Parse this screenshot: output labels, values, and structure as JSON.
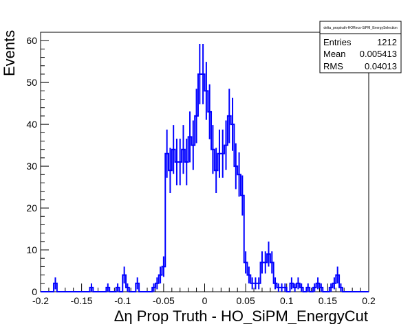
{
  "chart_data": {
    "type": "histogram",
    "xlabel": "Δη Prop Truth - HO_SiPM_EnergyCut",
    "ylabel": "Events",
    "xlim": [
      -0.2,
      0.2
    ],
    "ylim": [
      0,
      62
    ],
    "x_ticks": [
      -0.2,
      -0.15,
      -0.1,
      -0.05,
      0,
      0.05,
      0.1,
      0.15,
      0.2
    ],
    "x_tick_labels": [
      "-0.2",
      "-0.15",
      "-0.1",
      "-0.05",
      "0",
      "0.05",
      "0.1",
      "0.15",
      "0.2"
    ],
    "y_ticks": [
      0,
      10,
      20,
      30,
      40,
      50,
      60
    ],
    "y_tick_labels": [
      "0",
      "10",
      "20",
      "30",
      "40",
      "50",
      "60"
    ],
    "bin_width": 0.004,
    "line_color": "#0000ff",
    "bins": [
      {
        "x": -0.182,
        "y": 2
      },
      {
        "x": -0.138,
        "y": 1
      },
      {
        "x": -0.118,
        "y": 1
      },
      {
        "x": -0.106,
        "y": 1
      },
      {
        "x": -0.098,
        "y": 4
      },
      {
        "x": -0.094,
        "y": 1
      },
      {
        "x": -0.082,
        "y": 2
      },
      {
        "x": -0.062,
        "y": 1
      },
      {
        "x": -0.058,
        "y": 2
      },
      {
        "x": -0.054,
        "y": 4
      },
      {
        "x": -0.05,
        "y": 6
      },
      {
        "x": -0.046,
        "y": 33
      },
      {
        "x": -0.042,
        "y": 29
      },
      {
        "x": -0.038,
        "y": 34
      },
      {
        "x": -0.034,
        "y": 31
      },
      {
        "x": -0.03,
        "y": 31
      },
      {
        "x": -0.026,
        "y": 34
      },
      {
        "x": -0.022,
        "y": 31
      },
      {
        "x": -0.018,
        "y": 37
      },
      {
        "x": -0.014,
        "y": 35
      },
      {
        "x": -0.01,
        "y": 42
      },
      {
        "x": -0.006,
        "y": 52
      },
      {
        "x": -0.002,
        "y": 52
      },
      {
        "x": 0.002,
        "y": 48
      },
      {
        "x": 0.006,
        "y": 43
      },
      {
        "x": 0.01,
        "y": 34
      },
      {
        "x": 0.014,
        "y": 29
      },
      {
        "x": 0.018,
        "y": 33
      },
      {
        "x": 0.022,
        "y": 33
      },
      {
        "x": 0.026,
        "y": 35
      },
      {
        "x": 0.03,
        "y": 42
      },
      {
        "x": 0.034,
        "y": 40
      },
      {
        "x": 0.038,
        "y": 30
      },
      {
        "x": 0.042,
        "y": 28
      },
      {
        "x": 0.046,
        "y": 23
      },
      {
        "x": 0.05,
        "y": 7
      },
      {
        "x": 0.054,
        "y": 4
      },
      {
        "x": 0.058,
        "y": 2
      },
      {
        "x": 0.062,
        "y": 2
      },
      {
        "x": 0.066,
        "y": 2
      },
      {
        "x": 0.07,
        "y": 7
      },
      {
        "x": 0.074,
        "y": 7
      },
      {
        "x": 0.078,
        "y": 9
      },
      {
        "x": 0.082,
        "y": 7
      },
      {
        "x": 0.086,
        "y": 2
      },
      {
        "x": 0.09,
        "y": 1
      },
      {
        "x": 0.094,
        "y": 1
      },
      {
        "x": 0.098,
        "y": 1
      },
      {
        "x": 0.106,
        "y": 2
      },
      {
        "x": 0.11,
        "y": 1
      },
      {
        "x": 0.114,
        "y": 2
      },
      {
        "x": 0.118,
        "y": 1
      },
      {
        "x": 0.126,
        "y": 1
      },
      {
        "x": 0.134,
        "y": 1
      },
      {
        "x": 0.138,
        "y": 2
      },
      {
        "x": 0.142,
        "y": 1
      },
      {
        "x": 0.154,
        "y": 1
      },
      {
        "x": 0.158,
        "y": 2
      },
      {
        "x": 0.162,
        "y": 4
      },
      {
        "x": 0.166,
        "y": 1
      }
    ]
  },
  "stats_box": {
    "title": "delta_proptruth-HOReco-SiPM_EnergySelection",
    "entries_label": "Entries",
    "entries_value": "1212",
    "mean_label": "Mean",
    "mean_value": "0.005413",
    "rms_label": "RMS",
    "rms_value": "0.04013"
  }
}
